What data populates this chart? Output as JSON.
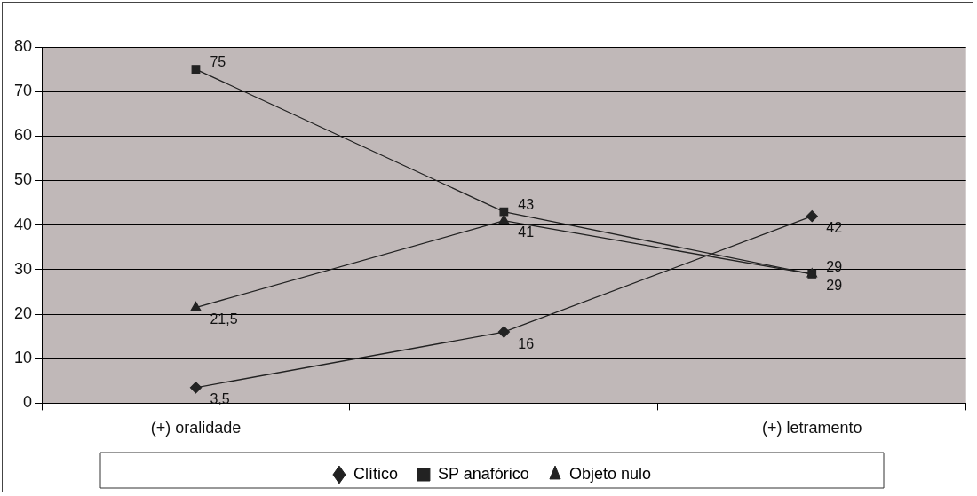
{
  "chart_data": {
    "type": "line",
    "categories": [
      "(+) oralidade",
      null,
      "(+) letramento"
    ],
    "series": [
      {
        "name": "Clítico",
        "color": "#222222",
        "marker": "diamond",
        "values": [
          3.5,
          16,
          42
        ],
        "value_labels": [
          "3,5",
          "16",
          "42"
        ]
      },
      {
        "name": "SP anafórico",
        "color": "#222222",
        "marker": "square",
        "values": [
          75,
          43,
          29
        ],
        "value_labels": [
          "75",
          "43",
          "29"
        ]
      },
      {
        "name": "Objeto nulo",
        "color": "#222222",
        "marker": "triangle",
        "values": [
          21.5,
          41,
          29
        ],
        "value_labels": [
          "21,5",
          "41",
          "29"
        ]
      }
    ],
    "ylim": [
      0,
      80
    ],
    "yticks": [
      0,
      10,
      20,
      30,
      40,
      50,
      60,
      70,
      80
    ],
    "grid": "y",
    "legend": "bottom",
    "line_style": "solid"
  }
}
